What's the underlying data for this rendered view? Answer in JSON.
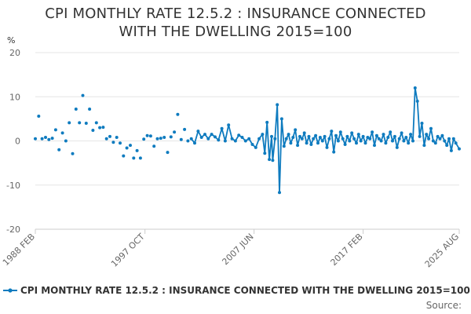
{
  "chart_data": {
    "type": "line",
    "title_line1": "CPI MONTHLY RATE 12.5.2 : INSURANCE CONNECTED",
    "title_line2": "WITH THE DWELLING 2015=100",
    "ylabel": "%",
    "ylim": [
      -20,
      20
    ],
    "yticks": [
      20,
      10,
      0,
      -10,
      -20
    ],
    "xrange": [
      "1988 FEB",
      "2025 AUG"
    ],
    "xticks": [
      "1988 FEB",
      "1997 OCT",
      "2007 JUN",
      "2017 FEB",
      "2025 AUG"
    ],
    "grid": "horizontal",
    "legend_position": "bottom-left",
    "series": [
      {
        "name": "CPI MONTHLY RATE 12.5.2 : INSURANCE CONNECTED WITH THE DWELLING 2015=100",
        "color": "#0e7bbf",
        "points_note": "approximate readings (year-fraction, % change)",
        "x": [
          1988.1,
          1988.4,
          1988.7,
          1989.0,
          1989.3,
          1989.6,
          1989.9,
          1990.2,
          1990.5,
          1990.8,
          1991.1,
          1991.4,
          1991.7,
          1992.0,
          1992.3,
          1992.6,
          1992.9,
          1993.2,
          1993.5,
          1993.8,
          1994.1,
          1994.4,
          1994.7,
          1995.0,
          1995.3,
          1995.6,
          1995.9,
          1996.2,
          1996.5,
          1996.8,
          1997.1,
          1997.4,
          1997.7,
          1998.0,
          1998.3,
          1998.6,
          1998.9,
          1999.2,
          1999.5,
          1999.8,
          2000.1,
          2000.4,
          2000.7,
          2001.0,
          2001.3,
          2001.6,
          2001.9,
          2002.2,
          2002.5,
          2002.8,
          2003.1,
          2003.4,
          2003.7,
          2004.0,
          2004.3,
          2004.6,
          2004.9,
          2005.2,
          2005.5,
          2005.8,
          2006.1,
          2006.4,
          2006.7,
          2007.0,
          2007.3,
          2007.6,
          2007.9,
          2008.2,
          2008.4,
          2008.6,
          2008.8,
          2009.0,
          2009.1,
          2009.3,
          2009.5,
          2009.7,
          2009.9,
          2010.1,
          2010.3,
          2010.5,
          2010.7,
          2010.9,
          2011.1,
          2011.3,
          2011.5,
          2011.7,
          2011.9,
          2012.1,
          2012.3,
          2012.5,
          2012.7,
          2012.9,
          2013.1,
          2013.3,
          2013.5,
          2013.7,
          2013.9,
          2014.1,
          2014.3,
          2014.5,
          2014.7,
          2014.9,
          2015.1,
          2015.3,
          2015.5,
          2015.7,
          2015.9,
          2016.1,
          2016.3,
          2016.5,
          2016.7,
          2016.9,
          2017.1,
          2017.3,
          2017.5,
          2017.7,
          2017.9,
          2018.1,
          2018.3,
          2018.5,
          2018.7,
          2018.9,
          2019.1,
          2019.3,
          2019.5,
          2019.7,
          2019.9,
          2020.1,
          2020.3,
          2020.5,
          2020.7,
          2020.9,
          2021.1,
          2021.3,
          2021.5,
          2021.7,
          2021.9,
          2022.1,
          2022.3,
          2022.5,
          2022.7,
          2022.9,
          2023.1,
          2023.3,
          2023.5,
          2023.7,
          2023.9,
          2024.1,
          2024.3,
          2024.5,
          2024.7,
          2024.9,
          2025.1,
          2025.3,
          2025.6
        ],
        "values": [
          0.5,
          5.6,
          0.5,
          0.8,
          0.3,
          0.6,
          2.5,
          -2.0,
          1.8,
          0.0,
          4.1,
          -2.9,
          7.2,
          4.1,
          10.3,
          4.0,
          7.2,
          2.4,
          4.1,
          3.0,
          3.1,
          0.5,
          1.0,
          -0.3,
          0.8,
          -0.5,
          -3.4,
          -1.6,
          -1.0,
          -3.9,
          -2.2,
          -3.9,
          0.4,
          1.2,
          1.1,
          -1.2,
          0.5,
          0.6,
          0.8,
          -2.6,
          0.9,
          2.0,
          6.0,
          0.3,
          2.6,
          0.0,
          0.5,
          -0.5,
          2.2,
          0.8,
          1.5,
          0.5,
          1.5,
          0.9,
          0.2,
          2.8,
          0.0,
          3.6,
          0.5,
          0.0,
          1.3,
          0.8,
          0.0,
          0.5,
          -0.8,
          -1.5,
          0.5,
          1.5,
          -2.8,
          4.2,
          -4.2,
          1.0,
          -4.4,
          0.5,
          8.2,
          -11.7,
          5.0,
          -1.2,
          0.5,
          1.5,
          -0.5,
          0.8,
          2.5,
          -1.0,
          1.0,
          0.5,
          1.8,
          -0.5,
          1.0,
          -0.8,
          0.5,
          1.2,
          -0.5,
          0.8,
          0.0,
          1.0,
          -1.5,
          0.5,
          2.2,
          -2.5,
          1.2,
          0.0,
          2.0,
          0.5,
          -0.8,
          1.0,
          0.0,
          1.8,
          0.5,
          -0.5,
          1.5,
          0.0,
          1.0,
          -0.5,
          0.8,
          0.5,
          2.0,
          -1.0,
          1.2,
          0.5,
          0.0,
          1.5,
          -0.5,
          0.8,
          2.0,
          0.0,
          1.0,
          -1.5,
          0.5,
          1.8,
          0.0,
          0.8,
          -0.5,
          1.5,
          0.0,
          12.0,
          9.0,
          1.0,
          4.0,
          -1.0,
          1.5,
          0.5,
          2.8,
          0.0,
          -0.5,
          1.0,
          0.5,
          1.2,
          0.0,
          -1.0,
          0.5,
          -2.2,
          0.5,
          -0.5,
          -1.8
        ]
      }
    ]
  },
  "legend": {
    "label": "CPI MONTHLY RATE 12.5.2 : INSURANCE CONNECTED WITH THE DWELLING 2015=100"
  },
  "source": {
    "label": "Source:"
  }
}
